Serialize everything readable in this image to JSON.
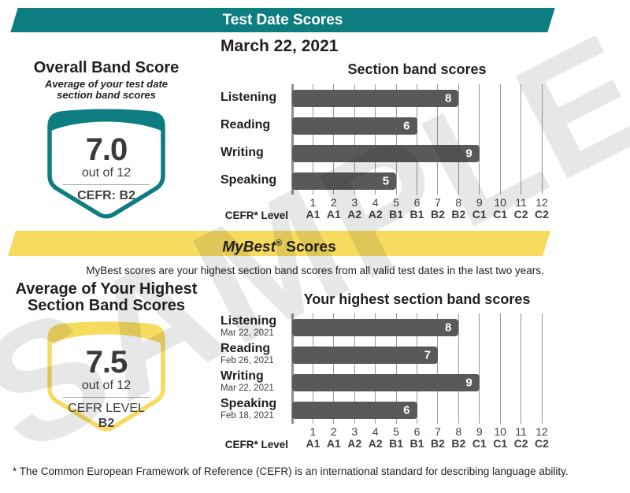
{
  "watermark": "SAMPLE",
  "colors": {
    "teal": "#0E7D81",
    "yellow": "#F6DB5F",
    "bar_gray": "#58595B",
    "grid_gray": "#97989A",
    "text_dark": "#231F20"
  },
  "test_date_section": {
    "banner_title": "Test Date Scores",
    "date": "March 22, 2021",
    "overall_badge": {
      "title": "Overall Band Score",
      "subtitle_line1": "Average of your test date",
      "subtitle_line2": "section band scores",
      "score": "7.0",
      "out_of": "out of 12",
      "cefr": "CEFR: B2"
    }
  },
  "mybest_section": {
    "banner_brand": "MyBest",
    "banner_reg": "®",
    "banner_rest": " Scores",
    "description": "MyBest scores are your highest section band scores from all valid test dates in the last two years.",
    "average_badge": {
      "title_line1": "Average of Your Highest",
      "title_line2": "Section Band Scores",
      "score": "7.5",
      "out_of": "out of 12",
      "cefr_label": "CEFR LEVEL",
      "cefr_value": "B2"
    }
  },
  "footnote": "* The Common European Framework of Reference (CEFR) is an international standard for describing language ability.",
  "chart_data": [
    {
      "type": "bar",
      "orientation": "horizontal",
      "title": "Section band scores",
      "categories": [
        "Listening",
        "Reading",
        "Writing",
        "Speaking"
      ],
      "values": [
        8,
        6,
        9,
        5
      ],
      "xlim": [
        0,
        12
      ],
      "x_ticks": [
        "1",
        "2",
        "3",
        "4",
        "5",
        "6",
        "7",
        "8",
        "9",
        "10",
        "11",
        "12"
      ],
      "x_tick_cefr": [
        "A1",
        "A1",
        "A2",
        "A2",
        "B1",
        "B1",
        "B2",
        "B2",
        "C1",
        "C1",
        "C2",
        "C2"
      ],
      "x_axis_label": "CEFR* Level",
      "grid": "vertical lines at each integer 0-12, axis line thicker at 0",
      "legend": "none"
    },
    {
      "type": "bar",
      "orientation": "horizontal",
      "title": "Your highest section band scores",
      "categories": [
        "Listening",
        "Reading",
        "Writing",
        "Speaking"
      ],
      "dates": [
        "Mar 22, 2021",
        "Feb 26, 2021",
        "Mar 22, 2021",
        "Feb 18, 2021"
      ],
      "values": [
        8,
        7,
        9,
        6
      ],
      "xlim": [
        0,
        12
      ],
      "x_ticks": [
        "1",
        "2",
        "3",
        "4",
        "5",
        "6",
        "7",
        "8",
        "9",
        "10",
        "11",
        "12"
      ],
      "x_tick_cefr": [
        "A1",
        "A1",
        "A2",
        "A2",
        "B1",
        "B1",
        "B2",
        "B2",
        "C1",
        "C1",
        "C2",
        "C2"
      ],
      "x_axis_label": "CEFR* Level",
      "grid": "vertical lines at each integer 0-12, axis line thicker at 0",
      "legend": "none"
    }
  ]
}
